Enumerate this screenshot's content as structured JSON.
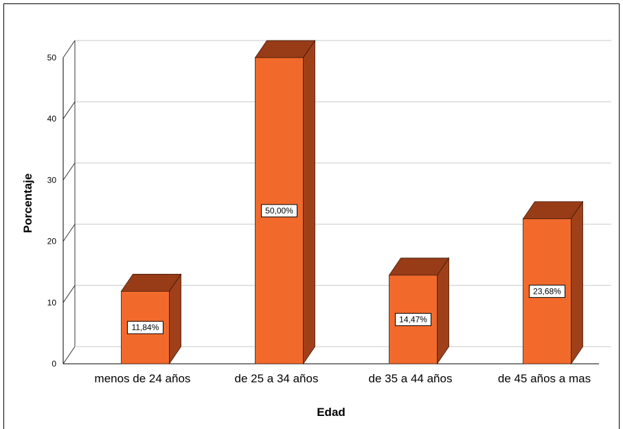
{
  "chart_data": {
    "type": "bar",
    "categories": [
      "menos de 24 años",
      "de 25 a 34 años",
      "de 35 a 44 años",
      "de 45 años a mas"
    ],
    "values": [
      11.84,
      50.0,
      14.47,
      23.68
    ],
    "data_labels": [
      "11,84%",
      "50,00%",
      "14,47%",
      "23,68%"
    ],
    "xlabel": "Edad",
    "ylabel": "Porcentaje",
    "ylim": [
      0,
      50
    ],
    "yticks": [
      "0",
      "10",
      "20",
      "30",
      "40",
      "50"
    ],
    "grid": true,
    "style": "3d",
    "colors": {
      "bar_front": "#f26a2b",
      "bar_side": "#a0401a",
      "bar_top": "#983b17"
    }
  }
}
